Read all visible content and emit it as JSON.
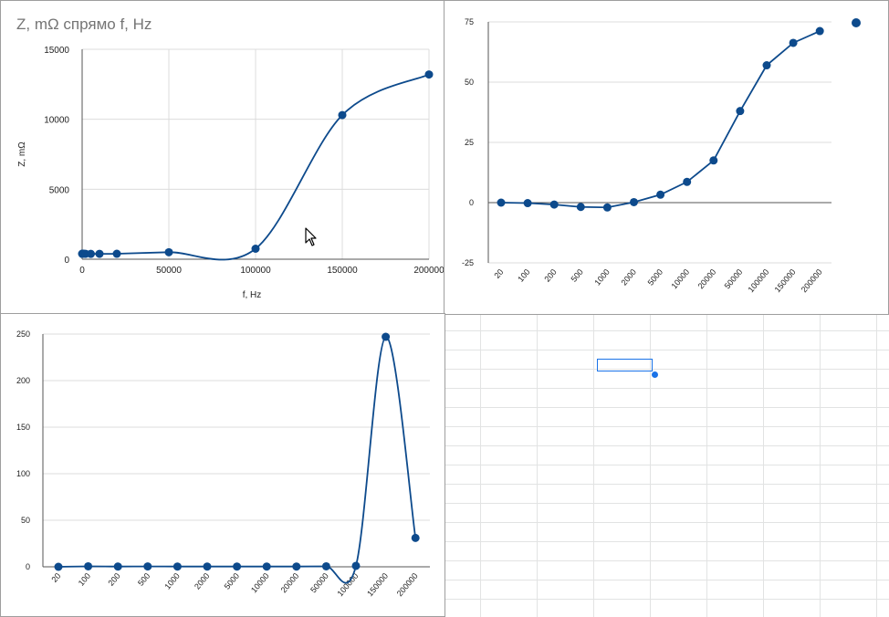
{
  "sheet": {
    "accent_color": "#1a73e8",
    "grid_color": "#e2e3e3"
  },
  "chart_data": [
    {
      "type": "scatter",
      "smooth": true,
      "title": "Z, mΩ спрямо f, Hz",
      "xlabel": "f, Hz",
      "ylabel": "Z, mΩ",
      "x_ticks": [
        "0",
        "50000",
        "100000",
        "150000",
        "200000"
      ],
      "y_ticks": [
        "0",
        "5000",
        "10000",
        "15000"
      ],
      "xlim": [
        0,
        200000
      ],
      "ylim": [
        0,
        15000
      ],
      "grid": true,
      "color": "#0d4a8c",
      "series": [
        {
          "x": [
            20,
            100,
            200,
            500,
            1000,
            2000,
            5000,
            10000,
            20000,
            50000,
            100000,
            150000,
            200000
          ],
          "values": [
            390,
            390,
            390,
            390,
            390,
            385,
            380,
            385,
            390,
            500,
            750,
            10300,
            13200
          ]
        }
      ]
    },
    {
      "type": "line",
      "categories": [
        "20",
        "100",
        "200",
        "500",
        "1000",
        "2000",
        "5000",
        "10000",
        "20000",
        "50000",
        "100000",
        "150000",
        "200000"
      ],
      "y_ticks": [
        "-25",
        "0",
        "25",
        "50",
        "75"
      ],
      "ylim": [
        -25,
        75
      ],
      "grid": true,
      "legend": "top-right",
      "color": "#0d4a8c",
      "series": [
        {
          "values": [
            0,
            -0.2,
            -0.8,
            -1.8,
            -2,
            0.2,
            3.3,
            8.6,
            17.5,
            38,
            57,
            66.3,
            71.2
          ]
        }
      ]
    },
    {
      "type": "line",
      "smooth": true,
      "categories": [
        "20",
        "100",
        "200",
        "500",
        "1000",
        "2000",
        "5000",
        "10000",
        "20000",
        "50000",
        "100000",
        "150000",
        "200000"
      ],
      "y_ticks": [
        "0",
        "50",
        "100",
        "150",
        "200",
        "250"
      ],
      "ylim": [
        0,
        250
      ],
      "grid": true,
      "color": "#0d4a8c",
      "series": [
        {
          "values": [
            0,
            0.5,
            0.3,
            0.4,
            0.3,
            0.3,
            0.3,
            0.3,
            0.3,
            0.5,
            1,
            247,
            31
          ]
        }
      ]
    }
  ]
}
